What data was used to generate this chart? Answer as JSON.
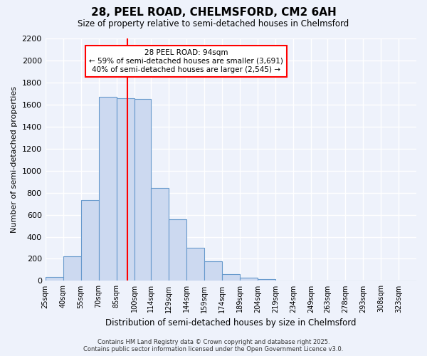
{
  "title": "28, PEEL ROAD, CHELMSFORD, CM2 6AH",
  "subtitle": "Size of property relative to semi-detached houses in Chelmsford",
  "xlabel": "Distribution of semi-detached houses by size in Chelmsford",
  "ylabel": "Number of semi-detached properties",
  "bin_labels": [
    "25sqm",
    "40sqm",
    "55sqm",
    "70sqm",
    "85sqm",
    "100sqm",
    "114sqm",
    "129sqm",
    "144sqm",
    "159sqm",
    "174sqm",
    "189sqm",
    "204sqm",
    "219sqm",
    "234sqm",
    "249sqm",
    "263sqm",
    "278sqm",
    "293sqm",
    "308sqm",
    "323sqm"
  ],
  "bar_values": [
    35,
    220,
    730,
    1670,
    1660,
    1650,
    840,
    560,
    300,
    180,
    60,
    30,
    15,
    5,
    0,
    0,
    0,
    0,
    0,
    0,
    0
  ],
  "bin_edges": [
    25,
    40,
    55,
    70,
    85,
    100,
    114,
    129,
    144,
    159,
    174,
    189,
    204,
    219,
    234,
    249,
    263,
    278,
    293,
    308,
    323,
    338
  ],
  "bar_color": "#ccd9f0",
  "bar_edge_color": "#6699cc",
  "vline_x": 94,
  "vline_color": "red",
  "annotation_title": "28 PEEL ROAD: 94sqm",
  "annotation_line1": "← 59% of semi-detached houses are smaller (3,691)",
  "annotation_line2": "40% of semi-detached houses are larger (2,545) →",
  "annotation_box_color": "white",
  "annotation_box_edge": "red",
  "ylim": [
    0,
    2200
  ],
  "yticks": [
    0,
    200,
    400,
    600,
    800,
    1000,
    1200,
    1400,
    1600,
    1800,
    2000,
    2200
  ],
  "background_color": "#eef2fb",
  "grid_color": "white",
  "footnote1": "Contains HM Land Registry data © Crown copyright and database right 2025.",
  "footnote2": "Contains public sector information licensed under the Open Government Licence v3.0."
}
